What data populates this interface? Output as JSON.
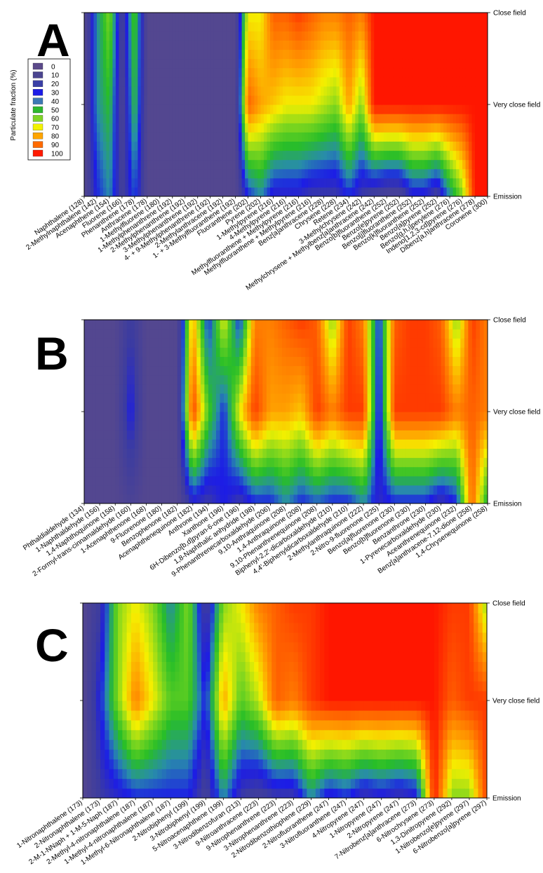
{
  "chart_data": [
    {
      "type": "heatmap",
      "panel": "A",
      "y_categories": [
        "Emission",
        "Very close field",
        "Close field"
      ],
      "colorbar_title": "Particulate fraction (%)",
      "colorbar_ticks": [
        "0",
        "10",
        "20",
        "30",
        "40",
        "50",
        "60",
        "70",
        "80",
        "90",
        "100"
      ],
      "colorbar_colors": [
        "#5B4A8A",
        "#4B4590",
        "#3A3FA6",
        "#1C1CE6",
        "#3C78B4",
        "#2EB82E",
        "#7FD426",
        "#F2F200",
        "#FFA500",
        "#FF6A00",
        "#FF1A00"
      ],
      "categories": [
        "Naphthalene (128)",
        "2-Methylnaphthalene (142)",
        "Acenaphthene (154)",
        "Fluorene (166)",
        "Phenanthrene (178)",
        "Anthracene (178)",
        "1-Methylfluorene (180)",
        "1-Methylphenanthrene (192)",
        "2-Methylphenanthrene (192)",
        "3-Methylphenanthrene (192)",
        "4- + 9-Methylphenanthrene (192)",
        "2-Methylanthracene (192)",
        "1- + 3-Methylfluoranthene (192)",
        "Fluoranthene (202)",
        "Pyrene (202)",
        "1-Methylpyrene (216)",
        "4-Methylpyrene (216)",
        "Methylfluoranthene + Methylpyrene (216)",
        "Methylfluoranthene + Methylpyrene (216)",
        "Benz[a]anthracene (228)",
        "Chrysene (228)",
        "Retene (234)",
        "3-Methylchrysene (242)",
        "Methylchrysene + Methylbenz[a]anthracene (242)",
        "Benzo[b]fluoranthene (252)",
        "Benzo[e]pyrene (252)",
        "Benzo[j]fluoranthene (252)",
        "Benzo[k]fluoranthene (252)",
        "Benzo[a]pyrene (252)",
        "Benzo[g,h,i]perylene (276)",
        "Indeno[1,2,3-cd]pyrene (276)",
        "Dibenz[a,h]anthracene (278)",
        "Coronene (300)"
      ],
      "values": {
        "Emission": [
          5,
          30,
          40,
          15,
          35,
          5,
          5,
          5,
          5,
          5,
          5,
          5,
          5,
          30,
          40,
          25,
          25,
          25,
          20,
          20,
          20,
          30,
          20,
          15,
          10,
          10,
          25,
          25,
          15,
          40,
          60,
          100,
          100
        ],
        "Very close field": [
          5,
          40,
          50,
          10,
          50,
          5,
          5,
          5,
          5,
          5,
          5,
          5,
          5,
          90,
          80,
          75,
          70,
          70,
          70,
          65,
          60,
          80,
          60,
          100,
          100,
          100,
          100,
          100,
          100,
          100,
          100,
          100,
          100
        ],
        "Close field": [
          5,
          40,
          60,
          15,
          55,
          5,
          5,
          5,
          5,
          5,
          5,
          5,
          5,
          70,
          70,
          90,
          90,
          95,
          90,
          85,
          85,
          90,
          85,
          100,
          100,
          100,
          100,
          100,
          100,
          100,
          100,
          100,
          100
        ]
      }
    },
    {
      "type": "heatmap",
      "panel": "B",
      "y_categories": [
        "Emission",
        "Very close field",
        "Close field"
      ],
      "categories": [
        "Phthaldialdehyde (134)",
        "1-Naphthaldehyde (156)",
        "1,4-Naphthoquinone (158)",
        "2-Formyl-trans-cinnamaldehyde (160)",
        "1-Acenaphthenone (168)",
        "9-Fluorenone (180)",
        "Benzophenone (182)",
        "Acenaphthenequinone (182)",
        "Anthrone (194)",
        "Xanthone (196)",
        "6H-Dibenzo[b,d]pyran-6-one (196)",
        "1,8-Naphthalic anhydride (198)",
        "9-Phenanthrenecarboxaldehyde (206)",
        "9,10-Anthraquinone (208)",
        "1,4-Anthraquinone (208)",
        "9,10-Phenanthrenequinone (208)",
        "Biphenyl-2,2'-dicarboxaldehyde (210)",
        "4,4'-Biphenyldicarboxaldehyde (210)",
        "2-Methylanthraquinone (222)",
        "2-Nitro-9-fluorenone (225)",
        "Benzo[a]fluorenone (230)",
        "Benzo[b]fluorenone (230)",
        "Benzanthrone (230)",
        "1-Pyrenecarboxaldehyde (230)",
        "Aceanthrenequinone (232)",
        "Benz[a]anthracene-7,12-dione (258)",
        "1,4-Chrysenequinone (258)"
      ],
      "values": {
        "Emission": [
          5,
          5,
          5,
          10,
          5,
          5,
          5,
          25,
          20,
          30,
          20,
          30,
          30,
          40,
          30,
          35,
          30,
          30,
          40,
          25,
          30,
          30,
          30,
          20,
          30,
          90,
          45
        ],
        "Very close field": [
          5,
          5,
          5,
          30,
          5,
          5,
          5,
          95,
          55,
          30,
          70,
          95,
          80,
          80,
          75,
          95,
          85,
          95,
          95,
          25,
          95,
          95,
          95,
          95,
          85,
          90,
          85
        ],
        "Close field": [
          5,
          5,
          5,
          20,
          5,
          5,
          5,
          80,
          30,
          70,
          30,
          85,
          85,
          90,
          95,
          90,
          60,
          95,
          85,
          30,
          90,
          95,
          95,
          90,
          60,
          95,
          85
        ]
      }
    },
    {
      "type": "heatmap",
      "panel": "C",
      "y_categories": [
        "Emission",
        "Very close field",
        "Close field"
      ],
      "categories": [
        "1-Nitronaphthalene (173)",
        "2-Nitronaphthalene (173)",
        "2-M-1-NNaph + 1-M-5-Naph (187)",
        "2-Methyl-4-nitronaphthalene (187)",
        "1-Methyl-4-nitronaphthalene (187)",
        "1-Methyl-6-Nitronaphthalene (187)",
        "2-Nitrobiphenyl (199)",
        "3-Nitrobiphenyl (199)",
        "5-Nitroacenaphthene (199)",
        "3-Nitrodibenzofuran (213)",
        "9-Nitroanthracene (223)",
        "9-Nitrophenanthrene (223)",
        "3-Nitrophenanthrene (223)",
        "2-Nitrodibenzothiophene (229)",
        "2-Nitrofluoranthene (247)",
        "3-Nitrofluoranthene (247)",
        "4-Nitropyrene (247)",
        "1-Nitropyrene (247)",
        "2-Nitropyrene (247)",
        "7-Nitrobenz[a]anthracene (273)",
        "6-Nitrochrysene (273)",
        "1,3-Dinitropyrene (292)",
        "1-Nitrobenzo[e]pyrene (297)",
        "6-Nitrobenzo[a]pyrene (297)"
      ],
      "values": {
        "Emission": [
          5,
          20,
          25,
          30,
          30,
          30,
          30,
          15,
          40,
          20,
          15,
          20,
          20,
          40,
          25,
          30,
          20,
          25,
          20,
          25,
          100,
          60,
          60,
          95
        ],
        "Very close field": [
          5,
          30,
          60,
          85,
          70,
          55,
          55,
          30,
          80,
          55,
          65,
          90,
          85,
          95,
          100,
          100,
          100,
          100,
          100,
          100,
          100,
          90,
          95,
          95
        ],
        "Close field": [
          5,
          20,
          60,
          70,
          60,
          40,
          60,
          15,
          60,
          70,
          85,
          90,
          95,
          95,
          100,
          100,
          100,
          100,
          100,
          100,
          100,
          95,
          95,
          60
        ]
      }
    }
  ]
}
